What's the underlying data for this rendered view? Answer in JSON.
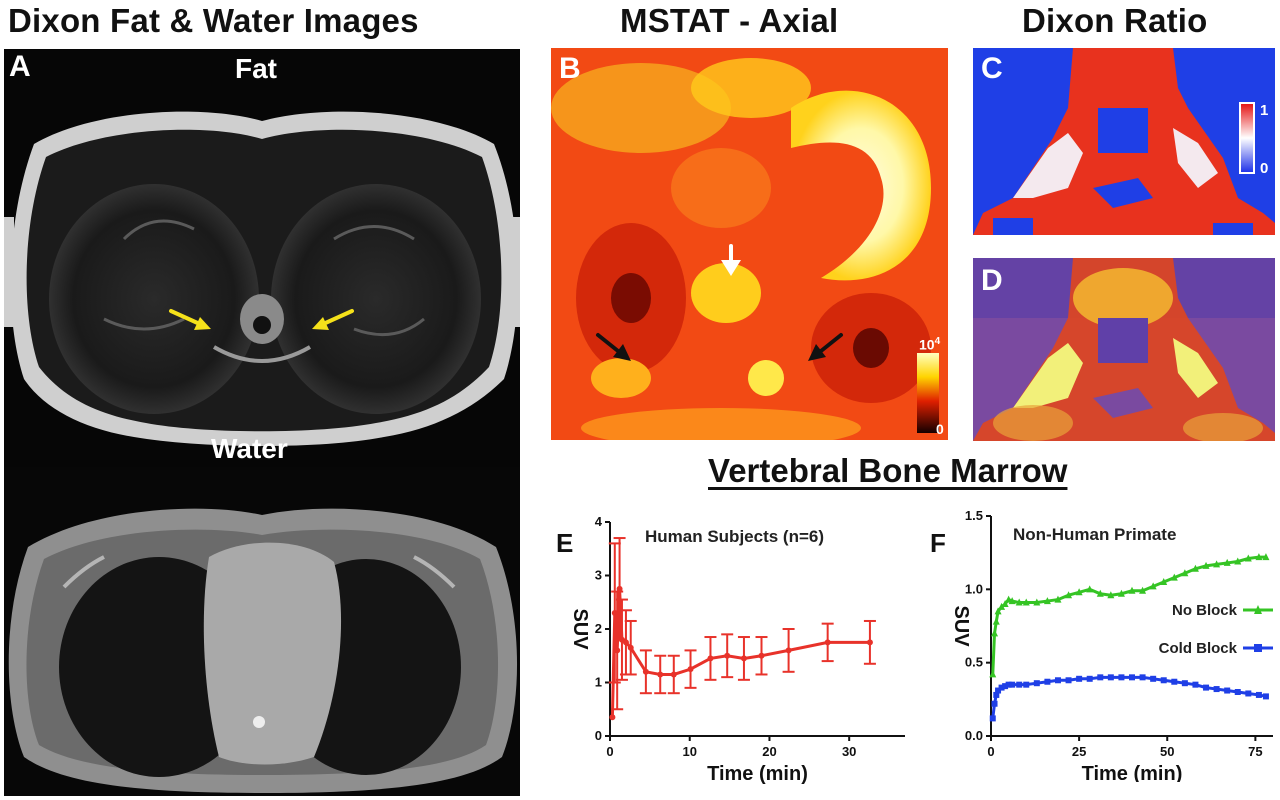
{
  "headings": {
    "dixon_fat_water": "Dixon Fat & Water Images",
    "mstat_axial": "MSTAT - Axial",
    "dixon_ratio": "Dixon Ratio",
    "vertebral_bone_marrow": "Vertebral Bone Marrow"
  },
  "panels": {
    "a": {
      "letter": "A",
      "fat_label": "Fat",
      "water_label": "Water"
    },
    "b": {
      "letter": "B",
      "colorbar_max": "10",
      "colorbar_max_exp": "4",
      "colorbar_min": "0"
    },
    "c": {
      "letter": "C",
      "colorbar_max": "1",
      "colorbar_min": "0"
    },
    "d": {
      "letter": "D"
    },
    "e": {
      "letter": "E"
    },
    "f": {
      "letter": "F"
    }
  },
  "colors": {
    "human_series": "#e8322a",
    "no_block": "#35c424",
    "cold_block": "#1f3fe6",
    "fat_arrows": "#f5e11a"
  },
  "chart_data": [
    {
      "panel": "E",
      "type": "line",
      "title": "Human Subjects (n=6)",
      "xlabel": "Time (min)",
      "ylabel": "SUV",
      "xlim": [
        0,
        37
      ],
      "ylim": [
        0,
        4
      ],
      "xticks": [
        0,
        10,
        20,
        30
      ],
      "yticks": [
        0,
        1,
        2,
        3,
        4
      ],
      "series": [
        {
          "x": [
            0.3,
            0.6,
            0.9,
            1.2,
            1.5,
            2.0,
            2.6,
            4.5,
            6.3,
            8.0,
            10.1,
            12.6,
            14.7,
            16.8,
            19.0,
            22.4,
            27.3,
            32.6
          ],
          "y": [
            0.35,
            2.3,
            1.6,
            2.75,
            1.8,
            1.75,
            1.65,
            1.2,
            1.15,
            1.15,
            1.25,
            1.45,
            1.5,
            1.45,
            1.5,
            1.6,
            1.75,
            1.75
          ],
          "err": [
            0.0,
            1.3,
            1.1,
            0.95,
            0.75,
            0.6,
            0.5,
            0.4,
            0.35,
            0.35,
            0.35,
            0.4,
            0.4,
            0.4,
            0.35,
            0.4,
            0.35,
            0.4
          ]
        }
      ]
    },
    {
      "panel": "F",
      "type": "line",
      "title": "Non-Human Primate",
      "xlabel": "Time (min)",
      "ylabel": "SUV",
      "xlim": [
        0,
        80
      ],
      "ylim": [
        0,
        1.5
      ],
      "xticks": [
        0,
        25,
        50,
        75
      ],
      "yticks": [
        0.0,
        0.5,
        1.0,
        1.5
      ],
      "series": [
        {
          "name": "No Block",
          "marker": "triangle",
          "x": [
            0.5,
            1,
            1.5,
            2,
            3,
            4,
            5,
            6,
            8,
            10,
            13,
            16,
            19,
            22,
            25,
            28,
            31,
            34,
            37,
            40,
            43,
            46,
            49,
            52,
            55,
            58,
            61,
            64,
            67,
            70,
            73,
            76,
            78
          ],
          "y": [
            0.42,
            0.7,
            0.78,
            0.85,
            0.88,
            0.9,
            0.93,
            0.92,
            0.91,
            0.91,
            0.91,
            0.92,
            0.93,
            0.96,
            0.98,
            1.0,
            0.97,
            0.96,
            0.97,
            0.99,
            0.99,
            1.02,
            1.05,
            1.08,
            1.11,
            1.14,
            1.16,
            1.17,
            1.18,
            1.19,
            1.21,
            1.22,
            1.22
          ]
        },
        {
          "name": "Cold Block",
          "marker": "square",
          "x": [
            0.5,
            1,
            1.5,
            2,
            3,
            4,
            5,
            6,
            8,
            10,
            13,
            16,
            19,
            22,
            25,
            28,
            31,
            34,
            37,
            40,
            43,
            46,
            49,
            52,
            55,
            58,
            61,
            64,
            67,
            70,
            73,
            76,
            78
          ],
          "y": [
            0.12,
            0.22,
            0.28,
            0.31,
            0.33,
            0.34,
            0.35,
            0.35,
            0.35,
            0.35,
            0.36,
            0.37,
            0.38,
            0.38,
            0.39,
            0.39,
            0.4,
            0.4,
            0.4,
            0.4,
            0.4,
            0.39,
            0.38,
            0.37,
            0.36,
            0.35,
            0.33,
            0.32,
            0.31,
            0.3,
            0.29,
            0.28,
            0.27
          ]
        }
      ]
    }
  ]
}
